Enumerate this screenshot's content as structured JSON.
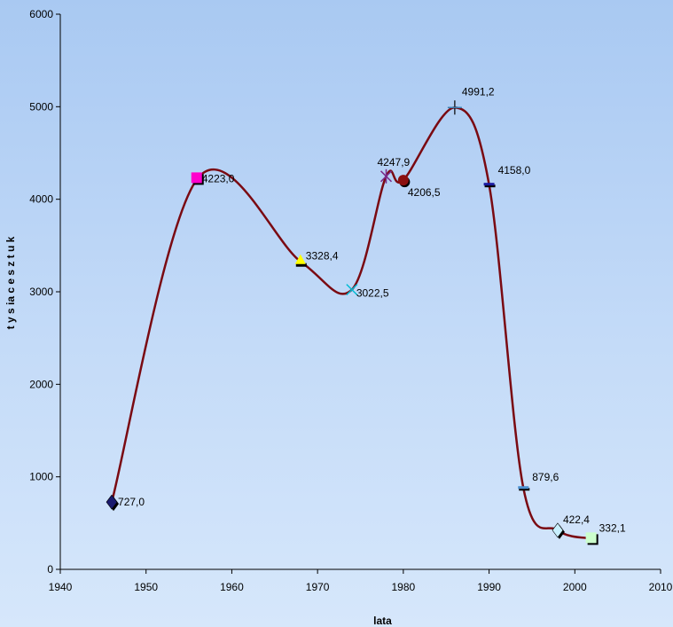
{
  "chart_data": {
    "type": "scatter",
    "title": "",
    "xlabel": "lata",
    "ylabel": "t y s ia c e  s z t u k",
    "xlim": [
      1940,
      2010
    ],
    "ylim": [
      0,
      6000
    ],
    "xticks": [
      1940,
      1950,
      1960,
      1970,
      1980,
      1990,
      2000,
      2010
    ],
    "yticks": [
      0,
      1000,
      2000,
      3000,
      4000,
      5000,
      6000
    ],
    "grid": false,
    "legend": "none",
    "line_color": "#7a0a12",
    "series": [
      {
        "points": [
          {
            "x": 1946,
            "y": 727.0,
            "label": "727,0",
            "marker": "diamond",
            "color": "#1a1a6e"
          },
          {
            "x": 1956,
            "y": 4223.0,
            "label": "4223,0",
            "marker": "square",
            "color": "#ff00cc"
          },
          {
            "x": 1968,
            "y": 3328.4,
            "label": "3328,4",
            "marker": "triangle",
            "color": "#ffff00"
          },
          {
            "x": 1974,
            "y": 3022.5,
            "label": "3022,5",
            "marker": "x",
            "color": "#00bcd4"
          },
          {
            "x": 1978,
            "y": 4247.9,
            "label": "4247,9",
            "marker": "star",
            "color": "#7a2a8a"
          },
          {
            "x": 1980,
            "y": 4206.5,
            "label": "4206,5",
            "marker": "circle",
            "color": "#8b1010"
          },
          {
            "x": 1986,
            "y": 4991.2,
            "label": "4991,2",
            "marker": "plus",
            "color": "#3a7fb0"
          },
          {
            "x": 1990,
            "y": 4158.0,
            "label": "4158,0",
            "marker": "dash",
            "color": "#1a1aa0"
          },
          {
            "x": 1994,
            "y": 879.6,
            "label": "879,6",
            "marker": "dash",
            "color": "#4a90d0"
          },
          {
            "x": 1998,
            "y": 422.4,
            "label": "422,4",
            "marker": "diamond",
            "color": "#c8f0ff"
          },
          {
            "x": 2002,
            "y": 332.1,
            "label": "332,1",
            "marker": "square",
            "color": "#ccffcc"
          }
        ]
      }
    ]
  }
}
